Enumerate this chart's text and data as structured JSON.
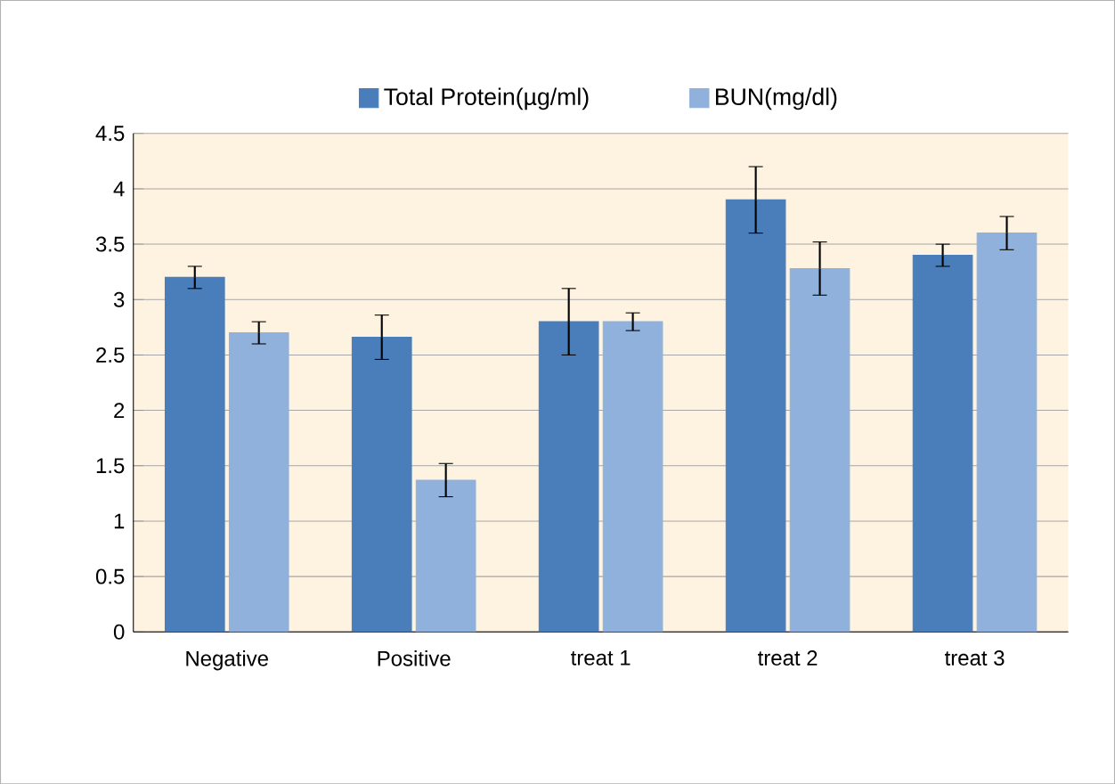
{
  "chart_data": {
    "type": "bar",
    "categories": [
      "Negative",
      "Positive",
      "treat 1",
      "treat 2",
      "treat 3"
    ],
    "series": [
      {
        "name": "Total Protein(µg/ml)",
        "color": "#4a7ebb",
        "values": [
          3.2,
          2.66,
          2.8,
          3.9,
          3.4
        ],
        "errors": [
          0.1,
          0.2,
          0.3,
          0.3,
          0.1
        ]
      },
      {
        "name": "BUN(mg/dl)",
        "color": "#8fb1dc",
        "values": [
          2.7,
          1.37,
          2.8,
          3.28,
          3.6
        ],
        "errors": [
          0.1,
          0.15,
          0.08,
          0.24,
          0.15
        ]
      }
    ],
    "ylim": [
      0,
      4.5
    ],
    "yticks": [
      0,
      0.5,
      1,
      1.5,
      2,
      2.5,
      3,
      3.5,
      4,
      4.5
    ],
    "grid": "y",
    "legend": "top"
  }
}
